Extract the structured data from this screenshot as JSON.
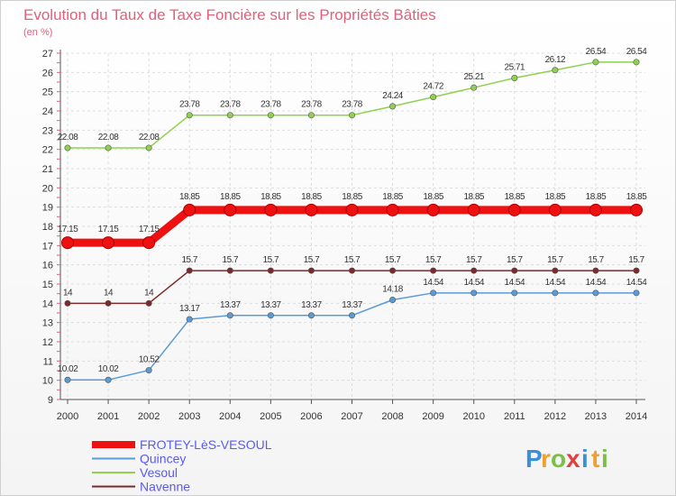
{
  "chart_data": {
    "type": "line",
    "title": "Evolution du Taux de Taxe Foncière sur les Propriétés Bâties",
    "subtitle": "(en %)",
    "xlabel": "",
    "ylabel": "",
    "ylim": [
      9,
      27
    ],
    "yticks": [
      9,
      10,
      11,
      12,
      13,
      14,
      15,
      16,
      17,
      18,
      19,
      20,
      21,
      22,
      23,
      24,
      25,
      26,
      27
    ],
    "grid": true,
    "categories": [
      "2000",
      "2001",
      "2002",
      "2003",
      "2004",
      "2005",
      "2006",
      "2007",
      "2008",
      "2009",
      "2010",
      "2011",
      "2012",
      "2013",
      "2014"
    ],
    "series": [
      {
        "name": "Vesoul",
        "color": "#8fd14f",
        "values": [
          22.08,
          22.08,
          22.08,
          23.78,
          23.78,
          23.78,
          23.78,
          23.78,
          24.24,
          24.72,
          25.21,
          25.71,
          26.12,
          26.54,
          26.54
        ],
        "labels": [
          "22.08",
          "22.08",
          "22.08",
          "23.78",
          "23.78",
          "23.78",
          "23.78",
          "23.78",
          "24.24",
          "24.72",
          "25.21",
          "25.71",
          "26.12",
          "26.54",
          "26.54"
        ]
      },
      {
        "name": "FROTEY-LèS-VESOUL",
        "color": "#ee1111",
        "values": [
          17.15,
          17.15,
          17.15,
          18.85,
          18.85,
          18.85,
          18.85,
          18.85,
          18.85,
          18.85,
          18.85,
          18.85,
          18.85,
          18.85,
          18.85
        ],
        "labels": [
          "17.15",
          "17.15",
          "17.15",
          "18.85",
          "18.85",
          "18.85",
          "18.85",
          "18.85",
          "18.85",
          "18.85",
          "18.85",
          "18.85",
          "18.85",
          "18.85",
          "18.85"
        ]
      },
      {
        "name": "Navenne",
        "color": "#7a2a2a",
        "values": [
          14,
          14,
          14,
          15.7,
          15.7,
          15.7,
          15.7,
          15.7,
          15.7,
          15.7,
          15.7,
          15.7,
          15.7,
          15.7,
          15.7
        ],
        "labels": [
          "14",
          "14",
          "14",
          "15.7",
          "15.7",
          "15.7",
          "15.7",
          "15.7",
          "15.7",
          "15.7",
          "15.7",
          "15.7",
          "15.7",
          "15.7",
          "15.7"
        ]
      },
      {
        "name": "Quincey",
        "color": "#5b9bd5",
        "values": [
          10.02,
          10.02,
          10.52,
          13.17,
          13.37,
          13.37,
          13.37,
          13.37,
          14.18,
          14.54,
          14.54,
          14.54,
          14.54,
          14.54,
          14.54
        ],
        "labels": [
          "10.02",
          "10.02",
          "10.52",
          "13.17",
          "13.37",
          "13.37",
          "13.37",
          "13.37",
          "14.18",
          "14.54",
          "14.54",
          "14.54",
          "14.54",
          "14.54",
          "14.54"
        ]
      }
    ],
    "legend": [
      {
        "name": "FROTEY-LèS-VESOUL",
        "color": "#ee1111"
      },
      {
        "name": "Quincey",
        "color": "#5b9bd5"
      },
      {
        "name": "Vesoul",
        "color": "#8fd14f"
      },
      {
        "name": "Navenne",
        "color": "#7a2a2a"
      }
    ]
  },
  "logo": {
    "letters": [
      "P",
      "r",
      "o",
      "x",
      "i",
      "t",
      "i"
    ],
    "colors": [
      "#3a8fd8",
      "#f0a030",
      "#7ac043",
      "#e04040",
      "#3a8fd8",
      "#f0a030",
      "#7ac043"
    ]
  }
}
